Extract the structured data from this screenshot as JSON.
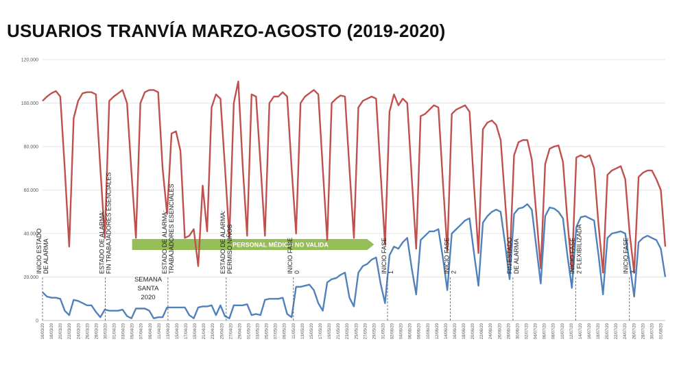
{
  "chart_data": {
    "type": "line",
    "title": "USUARIOS TRANVÍA MARZO-AGOSTO (2019-2020)",
    "ylim": [
      0,
      120000
    ],
    "yticks": [
      "0",
      "20.000",
      "40.000",
      "60.000",
      "80.000",
      "100.000",
      "120.000"
    ],
    "x_start": "16/03/20",
    "x_end": "02/08/20",
    "xtick_labels": [
      "16/03/20",
      "18/03/20",
      "20/03/20",
      "22/03/20",
      "24/03/20",
      "26/03/20",
      "28/03/20",
      "30/03/20",
      "01/04/20",
      "03/04/20",
      "05/04/20",
      "07/04/20",
      "09/04/20",
      "11/04/20",
      "13/04/20",
      "15/04/20",
      "17/04/20",
      "19/04/20",
      "21/04/20",
      "23/04/20",
      "25/04/20",
      "27/04/20",
      "29/04/20",
      "01/05/20",
      "03/05/20",
      "05/05/20",
      "07/05/20",
      "09/05/20",
      "11/05/20",
      "13/05/20",
      "15/05/20",
      "17/05/20",
      "19/05/20",
      "21/05/20",
      "23/05/20",
      "25/05/20",
      "27/05/20",
      "29/05/20",
      "31/05/20",
      "02/06/20",
      "04/06/20",
      "06/06/20",
      "08/06/20",
      "10/06/20",
      "12/06/20",
      "14/06/20",
      "16/06/20",
      "18/06/20",
      "20/06/20",
      "22/06/20",
      "24/06/20",
      "26/06/20",
      "28/06/20",
      "30/06/20",
      "02/07/20",
      "04/07/20",
      "06/07/20",
      "08/07/20",
      "10/07/20",
      "12/07/20",
      "14/07/20",
      "16/07/20",
      "18/07/20",
      "20/07/20",
      "22/07/20",
      "24/07/20",
      "26/07/20",
      "28/07/20",
      "30/07/20",
      "01/08/20",
      "03/08/20"
    ],
    "series": [
      {
        "name": "",
        "color": "#c0504d",
        "values": [
          101000,
          103000,
          104500,
          105500,
          103000,
          70000,
          34000,
          93000,
          101000,
          104500,
          105000,
          105000,
          104000,
          70000,
          38000,
          101000,
          103000,
          104500,
          106000,
          100000,
          68000,
          38000,
          100000,
          105000,
          106000,
          106000,
          105000,
          70000,
          49000,
          86000,
          87000,
          78000,
          38000,
          39000,
          42000,
          25000,
          62000,
          41000,
          98000,
          104000,
          102000,
          71000,
          38000,
          100000,
          110000,
          71000,
          39000,
          104000,
          103000,
          72000,
          39000,
          100000,
          103000,
          103000,
          105000,
          103000,
          70000,
          40000,
          100000,
          103000,
          104500,
          106000,
          104000,
          70000,
          37000,
          100000,
          102000,
          103500,
          103000,
          70000,
          38000,
          98000,
          101000,
          102000,
          103000,
          102000,
          68000,
          35000,
          96000,
          104000,
          99000,
          102000,
          100000,
          66000,
          33000,
          94000,
          95000,
          97000,
          99000,
          98000,
          64000,
          32000,
          95000,
          97000,
          98000,
          99000,
          96000,
          62000,
          31000,
          88000,
          91000,
          92000,
          90000,
          83000,
          55000,
          26000,
          76000,
          82000,
          83000,
          83000,
          74000,
          49000,
          24000,
          72000,
          79000,
          80000,
          80500,
          73000,
          46000,
          23000,
          75000,
          76000,
          75000,
          76000,
          70000,
          44000,
          22000,
          67000,
          69000,
          70000,
          71000,
          65000,
          40000,
          22000,
          66000,
          68000,
          69000,
          69000,
          65000,
          60000,
          34000
        ],
        "total_label": ""
      },
      {
        "name": "",
        "color": "#4f81bd",
        "values": [
          13000,
          11000,
          10500,
          10500,
          10000,
          4500,
          2500,
          9500,
          9000,
          8000,
          7000,
          7000,
          4000,
          1500,
          5000,
          4500,
          4500,
          4500,
          5000,
          2000,
          1000,
          5500,
          5500,
          5500,
          4500,
          1000,
          1500,
          1500,
          6000,
          6000,
          6000,
          6000,
          6000,
          2500,
          1000,
          6000,
          6500,
          6500,
          7000,
          2500,
          7000,
          2000,
          1000,
          7000,
          7000,
          7000,
          7500,
          2500,
          3000,
          2500,
          9500,
          10000,
          10000,
          10000,
          10500,
          3000,
          1500,
          15500,
          15500,
          16000,
          16500,
          14000,
          8000,
          4500,
          17500,
          19000,
          19500,
          21000,
          22000,
          10500,
          6500,
          22000,
          25000,
          26000,
          28000,
          29000,
          17000,
          8000,
          30000,
          34000,
          33000,
          36000,
          38000,
          24000,
          12000,
          37000,
          39000,
          41000,
          41000,
          42000,
          29000,
          14000,
          40000,
          42000,
          44000,
          46000,
          47000,
          31000,
          16000,
          45000,
          48000,
          50000,
          51000,
          50000,
          35000,
          19000,
          49000,
          51500,
          52000,
          53500,
          51000,
          34000,
          17000,
          48000,
          52000,
          51500,
          50000,
          47000,
          30000,
          15000,
          43000,
          47500,
          48000,
          47000,
          46000,
          30000,
          12000,
          38000,
          40000,
          40500,
          41000,
          40000,
          26000,
          11000,
          36000,
          38000,
          39000,
          38000,
          37000,
          33000,
          20000
        ]
      }
    ],
    "annotations": [
      {
        "text": "INICIO ESTADO DE ALARMA",
        "date": "16/03/20"
      },
      {
        "text": "ESTADO DE ALARMA: FIN TRABAJADORES ESENCIALES",
        "date": "30/03/20"
      },
      {
        "text": "ESTADO DE ALARMA: TRABAJADORES ESENCIALES",
        "date": "13/04/20"
      },
      {
        "text": "ESTADO DE ALARMA: PERMISO NIÑOS",
        "date": "26/04/20"
      },
      {
        "text": "INICIO FASE 0",
        "date": "11/05/20"
      },
      {
        "text": "INICIO FASE 1",
        "date": "01/06/20"
      },
      {
        "text": "INICIO FASE 2",
        "date": "15/06/20"
      },
      {
        "text": "FIN ESTADO DE ALARMA",
        "date": "29/06/20"
      },
      {
        "text": "INICIO FASE 2 FLEXIBILIZADA",
        "date": "13/07/20"
      },
      {
        "text": "INICIO FASE 3",
        "date": "25/07/20"
      }
    ],
    "semana_santa": {
      "line1": "SEMANA",
      "line2": "SANTA",
      "line3": "2020"
    },
    "band": {
      "text": "PERSONAL MÉDICO NO VALIDA",
      "from": "05/04/20",
      "to": "29/05/20",
      "color": "#8cb84a"
    }
  }
}
